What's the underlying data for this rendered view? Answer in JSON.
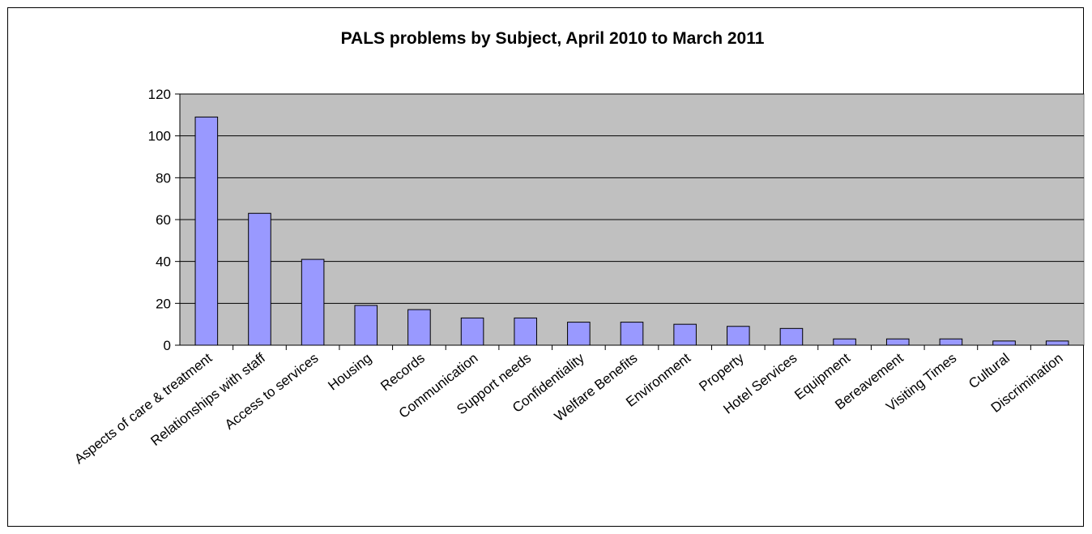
{
  "chart_data": {
    "type": "bar",
    "title": "PALS problems by Subject, April 2010 to March 2011",
    "xlabel": "",
    "ylabel": "",
    "categories": [
      "Aspects of care & treatment",
      "Relationships with staff",
      "Access to services",
      "Housing",
      "Records",
      "Communication",
      "Support needs",
      "Confidentiality",
      "Welfare Benefits",
      "Environment",
      "Property",
      "Hotel Services",
      "Equipment",
      "Bereavement",
      "Visiting Times",
      "Cultural",
      "Discrimination"
    ],
    "values": [
      109,
      63,
      41,
      19,
      17,
      13,
      13,
      11,
      11,
      10,
      9,
      8,
      3,
      3,
      3,
      2,
      2
    ],
    "ylim": [
      0,
      120
    ],
    "yticks": [
      0,
      20,
      40,
      60,
      80,
      100,
      120
    ],
    "grid": true,
    "legend": "none",
    "colors": {
      "bar_fill": "#9999ff",
      "bar_stroke": "#000000",
      "plot_background": "#c0c0c0",
      "gridline": "#000000"
    }
  }
}
